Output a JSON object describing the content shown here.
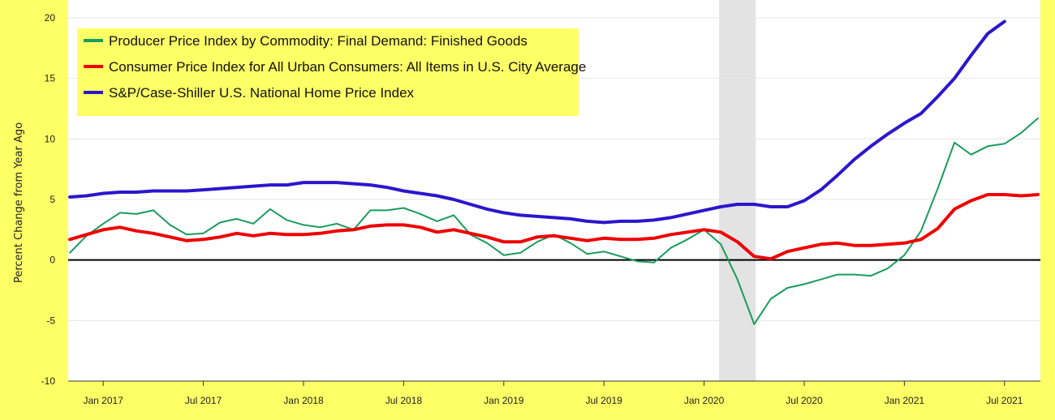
{
  "chart_data": {
    "type": "line",
    "ylabel": "Percent Change from Year Ago",
    "ylim": [
      -10,
      20
    ],
    "yticks": [
      -10,
      -5,
      0,
      5,
      10,
      15,
      20
    ],
    "ytick_labels": [
      "-10",
      "-5",
      "0",
      "5",
      "10",
      "15",
      "20"
    ],
    "xlim": [
      "2016-11",
      "2021-09"
    ],
    "xticks": [
      {
        "date": "2017-01",
        "label": "Jan 2017"
      },
      {
        "date": "2017-07",
        "label": "Jul 2017"
      },
      {
        "date": "2018-01",
        "label": "Jan 2018"
      },
      {
        "date": "2018-07",
        "label": "Jul 2018"
      },
      {
        "date": "2019-01",
        "label": "Jan 2019"
      },
      {
        "date": "2019-07",
        "label": "Jul 2019"
      },
      {
        "date": "2020-01",
        "label": "Jan 2020"
      },
      {
        "date": "2020-07",
        "label": "Jul 2020"
      },
      {
        "date": "2021-01",
        "label": "Jan 2021"
      },
      {
        "date": "2021-07",
        "label": "Jul 2021"
      }
    ],
    "recession": {
      "start": "2020-02",
      "end": "2020-04"
    },
    "grid": "horizontal",
    "zero_line": true,
    "legend_position": "top-left",
    "series": [
      {
        "name": "Producer Price Index by Commodity: Final Demand: Finished Goods",
        "color": "#1a9c5c",
        "x": [
          "2016-11",
          "2016-12",
          "2017-01",
          "2017-02",
          "2017-03",
          "2017-04",
          "2017-05",
          "2017-06",
          "2017-07",
          "2017-08",
          "2017-09",
          "2017-10",
          "2017-11",
          "2017-12",
          "2018-01",
          "2018-02",
          "2018-03",
          "2018-04",
          "2018-05",
          "2018-06",
          "2018-07",
          "2018-08",
          "2018-09",
          "2018-10",
          "2018-11",
          "2018-12",
          "2019-01",
          "2019-02",
          "2019-03",
          "2019-04",
          "2019-05",
          "2019-06",
          "2019-07",
          "2019-08",
          "2019-09",
          "2019-10",
          "2019-11",
          "2019-12",
          "2020-01",
          "2020-02",
          "2020-03",
          "2020-04",
          "2020-05",
          "2020-06",
          "2020-07",
          "2020-08",
          "2020-09",
          "2020-10",
          "2020-11",
          "2020-12",
          "2021-01",
          "2021-02",
          "2021-03",
          "2021-04",
          "2021-05",
          "2021-06",
          "2021-07",
          "2021-08",
          "2021-09"
        ],
        "values": [
          0.6,
          2.0,
          3.0,
          3.9,
          3.8,
          4.1,
          2.9,
          2.1,
          2.2,
          3.1,
          3.4,
          3.0,
          4.2,
          3.3,
          2.9,
          2.7,
          3.0,
          2.5,
          4.1,
          4.1,
          4.3,
          3.8,
          3.2,
          3.7,
          2.1,
          1.4,
          0.4,
          0.6,
          1.5,
          2.1,
          1.4,
          0.5,
          0.7,
          0.3,
          -0.1,
          -0.2,
          1.0,
          1.7,
          2.5,
          1.3,
          -1.6,
          -5.3,
          -3.2,
          -2.3,
          -2.0,
          -1.6,
          -1.2,
          -1.2,
          -1.3,
          -0.7,
          0.4,
          2.4,
          5.9,
          9.7,
          8.7,
          9.4,
          9.6,
          10.5,
          11.7
        ]
      },
      {
        "name": "Consumer Price Index for All Urban Consumers: All Items in U.S. City Average",
        "color": "#ee0000",
        "x": [
          "2016-11",
          "2016-12",
          "2017-01",
          "2017-02",
          "2017-03",
          "2017-04",
          "2017-05",
          "2017-06",
          "2017-07",
          "2017-08",
          "2017-09",
          "2017-10",
          "2017-11",
          "2017-12",
          "2018-01",
          "2018-02",
          "2018-03",
          "2018-04",
          "2018-05",
          "2018-06",
          "2018-07",
          "2018-08",
          "2018-09",
          "2018-10",
          "2018-11",
          "2018-12",
          "2019-01",
          "2019-02",
          "2019-03",
          "2019-04",
          "2019-05",
          "2019-06",
          "2019-07",
          "2019-08",
          "2019-09",
          "2019-10",
          "2019-11",
          "2019-12",
          "2020-01",
          "2020-02",
          "2020-03",
          "2020-04",
          "2020-05",
          "2020-06",
          "2020-07",
          "2020-08",
          "2020-09",
          "2020-10",
          "2020-11",
          "2020-12",
          "2021-01",
          "2021-02",
          "2021-03",
          "2021-04",
          "2021-05",
          "2021-06",
          "2021-07",
          "2021-08",
          "2021-09"
        ],
        "values": [
          1.7,
          2.1,
          2.5,
          2.7,
          2.4,
          2.2,
          1.9,
          1.6,
          1.7,
          1.9,
          2.2,
          2.0,
          2.2,
          2.1,
          2.1,
          2.2,
          2.4,
          2.5,
          2.8,
          2.9,
          2.9,
          2.7,
          2.3,
          2.5,
          2.2,
          1.9,
          1.5,
          1.5,
          1.9,
          2.0,
          1.8,
          1.6,
          1.8,
          1.7,
          1.7,
          1.8,
          2.1,
          2.3,
          2.5,
          2.3,
          1.5,
          0.3,
          0.1,
          0.7,
          1.0,
          1.3,
          1.4,
          1.2,
          1.2,
          1.3,
          1.4,
          1.7,
          2.6,
          4.2,
          4.9,
          5.4,
          5.4,
          5.3,
          5.4
        ]
      },
      {
        "name": "S&P/Case-Shiller U.S. National Home Price Index",
        "color": "#2a17cc",
        "x": [
          "2016-11",
          "2016-12",
          "2017-01",
          "2017-02",
          "2017-03",
          "2017-04",
          "2017-05",
          "2017-06",
          "2017-07",
          "2017-08",
          "2017-09",
          "2017-10",
          "2017-11",
          "2017-12",
          "2018-01",
          "2018-02",
          "2018-03",
          "2018-04",
          "2018-05",
          "2018-06",
          "2018-07",
          "2018-08",
          "2018-09",
          "2018-10",
          "2018-11",
          "2018-12",
          "2019-01",
          "2019-02",
          "2019-03",
          "2019-04",
          "2019-05",
          "2019-06",
          "2019-07",
          "2019-08",
          "2019-09",
          "2019-10",
          "2019-11",
          "2019-12",
          "2020-01",
          "2020-02",
          "2020-03",
          "2020-04",
          "2020-05",
          "2020-06",
          "2020-07",
          "2020-08",
          "2020-09",
          "2020-10",
          "2020-11",
          "2020-12",
          "2021-01",
          "2021-02",
          "2021-03",
          "2021-04",
          "2021-05",
          "2021-06",
          "2021-07"
        ],
        "values": [
          5.2,
          5.3,
          5.5,
          5.6,
          5.6,
          5.7,
          5.7,
          5.7,
          5.8,
          5.9,
          6.0,
          6.1,
          6.2,
          6.2,
          6.4,
          6.4,
          6.4,
          6.3,
          6.2,
          6.0,
          5.7,
          5.5,
          5.3,
          5.0,
          4.6,
          4.2,
          3.9,
          3.7,
          3.6,
          3.5,
          3.4,
          3.2,
          3.1,
          3.2,
          3.2,
          3.3,
          3.5,
          3.8,
          4.1,
          4.4,
          4.6,
          4.6,
          4.4,
          4.4,
          4.9,
          5.8,
          7.0,
          8.3,
          9.4,
          10.4,
          11.3,
          12.1,
          13.5,
          15.0,
          16.9,
          18.7,
          19.7
        ]
      }
    ]
  }
}
